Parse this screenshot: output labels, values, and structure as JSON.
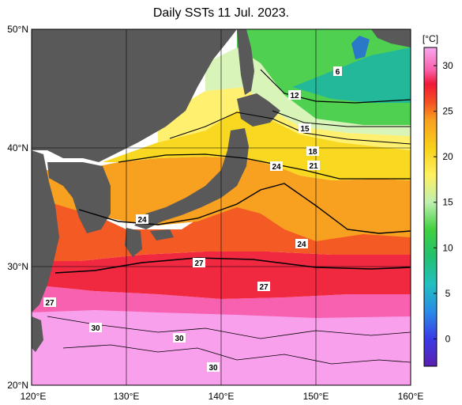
{
  "title": "Daily SSTs 11 Jul. 2023.",
  "map": {
    "lon_range": [
      120,
      160
    ],
    "lat_range": [
      20,
      50
    ],
    "lon_ticks": [
      "120°E",
      "130°E",
      "140°E",
      "150°E",
      "160°E"
    ],
    "lat_ticks": [
      "20°N",
      "30°N",
      "40°N",
      "50°N"
    ],
    "land_color": "#595959",
    "grid": true
  },
  "colorbar": {
    "unit": "[°C]",
    "min": -3,
    "max": 32,
    "ticks": [
      "0",
      "5",
      "10",
      "15",
      "20",
      "25",
      "30"
    ],
    "stops": [
      {
        "v": -3,
        "c": "#5a1fb0"
      },
      {
        "v": 0,
        "c": "#3a3ae6"
      },
      {
        "v": 3,
        "c": "#2a8be6"
      },
      {
        "v": 6,
        "c": "#22c0c0"
      },
      {
        "v": 9,
        "c": "#22c070"
      },
      {
        "v": 12,
        "c": "#40d040"
      },
      {
        "v": 15,
        "c": "#bff0b0"
      },
      {
        "v": 18,
        "c": "#fff060"
      },
      {
        "v": 21,
        "c": "#f8d018"
      },
      {
        "v": 24,
        "c": "#f8a020"
      },
      {
        "v": 26,
        "c": "#f45020"
      },
      {
        "v": 28,
        "c": "#f01838"
      },
      {
        "v": 29.5,
        "c": "#f860a8"
      },
      {
        "v": 32,
        "c": "#f8a8f0"
      }
    ]
  },
  "contour_labels": [
    "6",
    "12",
    "15",
    "18",
    "21",
    "24",
    "24",
    "24",
    "27",
    "27",
    "27",
    "30",
    "30",
    "30"
  ]
}
